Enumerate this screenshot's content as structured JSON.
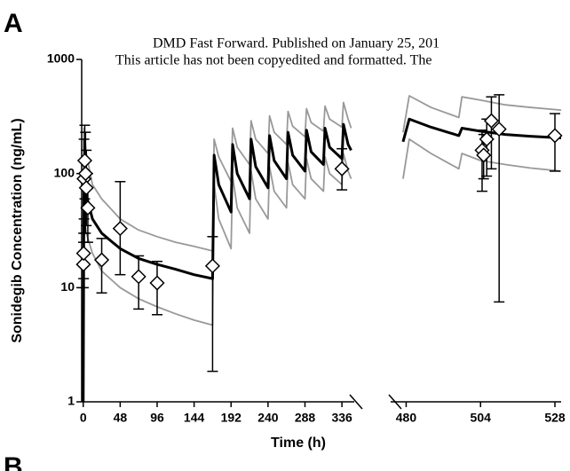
{
  "panel_label": "A",
  "next_panel_label": "B",
  "watermark": [
    "DMD Fast Forward. Published on January 25, 201",
    "This article has not been copyedited and formatted. The"
  ],
  "chart_data": {
    "type": "line",
    "y_label": "Sonidegib Concentration (ng/mL)",
    "x_label": "Time (h)",
    "y_scale": "log",
    "ylim": [
      1,
      1000
    ],
    "yticks": [
      1,
      10,
      100,
      1000
    ],
    "segments": [
      {
        "xlim": [
          -2,
          352
        ],
        "xticks": [
          0,
          48,
          96,
          144,
          192,
          240,
          288,
          336
        ],
        "x": [
          0,
          1,
          4,
          12,
          24,
          48,
          72,
          96,
          120,
          144,
          168,
          170,
          176,
          192,
          194,
          200,
          216,
          218,
          224,
          240,
          242,
          248,
          264,
          266,
          272,
          288,
          290,
          296,
          312,
          314,
          320,
          336,
          338,
          344,
          348
        ],
        "series": [
          {
            "color": "#999999",
            "values": [
              1,
              250,
              150,
              80,
              60,
              40,
              32,
              28,
              25,
              23,
              21,
              200,
              140,
              85,
              250,
              170,
              120,
              290,
              200,
              150,
              320,
              230,
              180,
              350,
              260,
              210,
              370,
              280,
              235,
              390,
              300,
              255,
              420,
              300,
              250
            ]
          },
          {
            "color": "#999999",
            "values": [
              1,
              40,
              30,
              20,
              14,
              10,
              8,
              6.8,
              5.9,
              5.2,
              4.7,
              80,
              40,
              22,
              95,
              50,
              30,
              105,
              60,
              40,
              115,
              70,
              50,
              125,
              80,
              60,
              135,
              90,
              70,
              140,
              100,
              80,
              150,
              105,
              90
            ]
          },
          {
            "color": "#000000",
            "values": [
              1,
              100,
              65,
              40,
              30,
              22,
              18,
              16,
              14.5,
              13,
              12,
              145,
              80,
              46,
              180,
              100,
              60,
              200,
              115,
              75,
              215,
              130,
              90,
              230,
              145,
              105,
              240,
              155,
              120,
              250,
              170,
              135,
              270,
              180,
              160
            ]
          }
        ],
        "observed": {
          "x": [
            0.25,
            0.5,
            1,
            2,
            3,
            4,
            6,
            24,
            48,
            72,
            96,
            168,
            336
          ],
          "y": [
            16,
            20,
            90,
            130,
            100,
            75,
            50,
            17.5,
            33,
            12.5,
            11,
            15.5,
            110
          ],
          "low": [
            10,
            12,
            40,
            60,
            30,
            35,
            25,
            9,
            13,
            6.5,
            5.8,
            1.85,
            72
          ],
          "high": [
            25,
            30,
            200,
            265,
            230,
            160,
            100,
            27,
            85,
            19,
            17,
            28,
            165
          ]
        }
      },
      {
        "xlim": [
          475,
          530
        ],
        "xticks": [
          480,
          504,
          528
        ],
        "x": [
          479,
          481,
          488,
          497,
          498,
          504,
          512,
          520,
          530
        ],
        "series": [
          {
            "color": "#999999",
            "values": [
              230,
              480,
              380,
              310,
              470,
              440,
              400,
              380,
              360
            ]
          },
          {
            "color": "#999999",
            "values": [
              90,
              200,
              150,
              110,
              150,
              130,
              120,
              112,
              105
            ]
          },
          {
            "color": "#000000",
            "values": [
              190,
              300,
              255,
              215,
              250,
              235,
              220,
              212,
              205
            ]
          }
        ],
        "observed": {
          "x": [
            504.5,
            505,
            506,
            507.5,
            510,
            528
          ],
          "y": [
            160,
            145,
            200,
            290,
            245,
            215
          ],
          "low": [
            70,
            90,
            95,
            110,
            7.5,
            105
          ],
          "high": [
            240,
            220,
            300,
            470,
            490,
            335
          ]
        }
      }
    ]
  }
}
